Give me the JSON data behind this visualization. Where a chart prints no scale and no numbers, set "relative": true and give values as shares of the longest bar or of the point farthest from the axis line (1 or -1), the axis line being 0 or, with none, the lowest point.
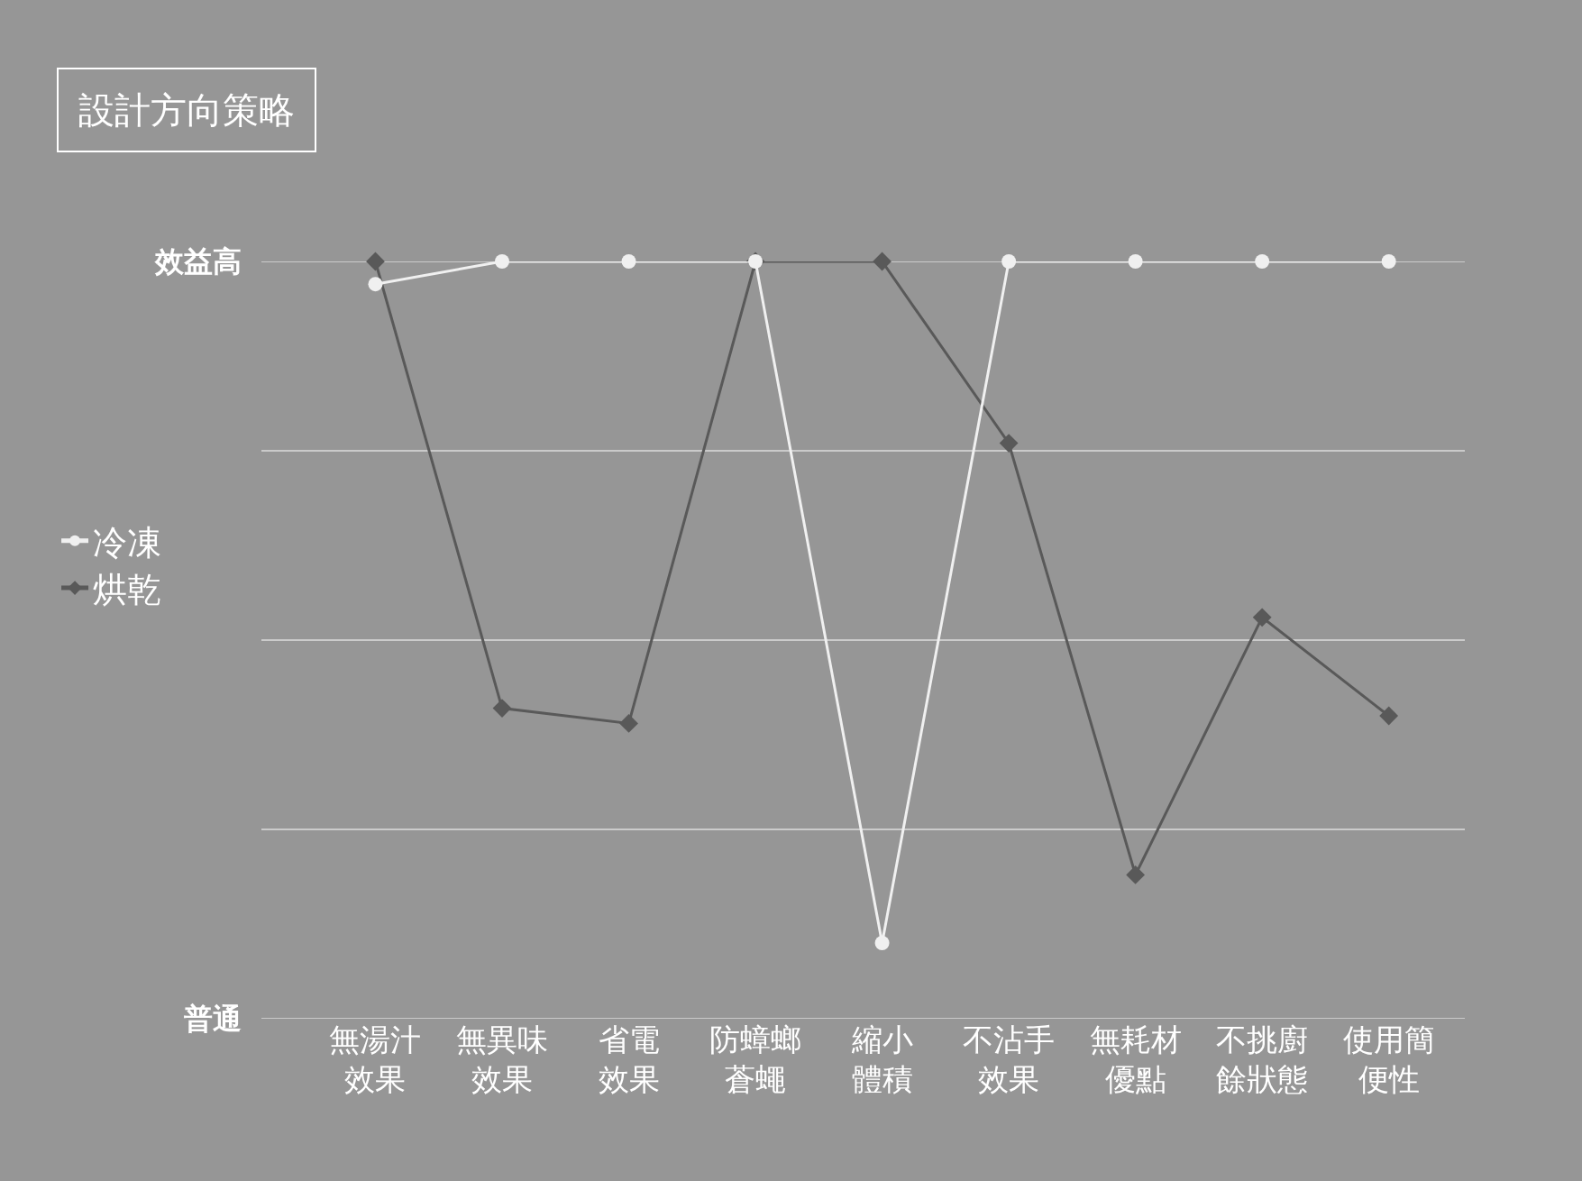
{
  "chart_data": {
    "type": "line",
    "title": "設計方向策略",
    "categories": [
      "無湯汁效果",
      "無異味效果",
      "省電效果",
      "防蟑螂蒼蠅",
      "縮小體積",
      "不沾手效果",
      "無耗材優點",
      "不挑廚餘狀態",
      "使用簡便性"
    ],
    "series": [
      {
        "name": "冷凍",
        "color": "#f0f0f0",
        "marker": "circle",
        "values": [
          0.97,
          1,
          1,
          1,
          0.1,
          1,
          1,
          1,
          1
        ]
      },
      {
        "name": "烘乾",
        "color": "#595959",
        "marker": "diamond",
        "values": [
          1,
          0.41,
          0.39,
          1,
          1,
          0.76,
          0.19,
          0.53,
          0.4
        ]
      }
    ],
    "relative": true,
    "annotations": [
      "效益高",
      "普通"
    ],
    "grid": "y",
    "legend": "left"
  }
}
